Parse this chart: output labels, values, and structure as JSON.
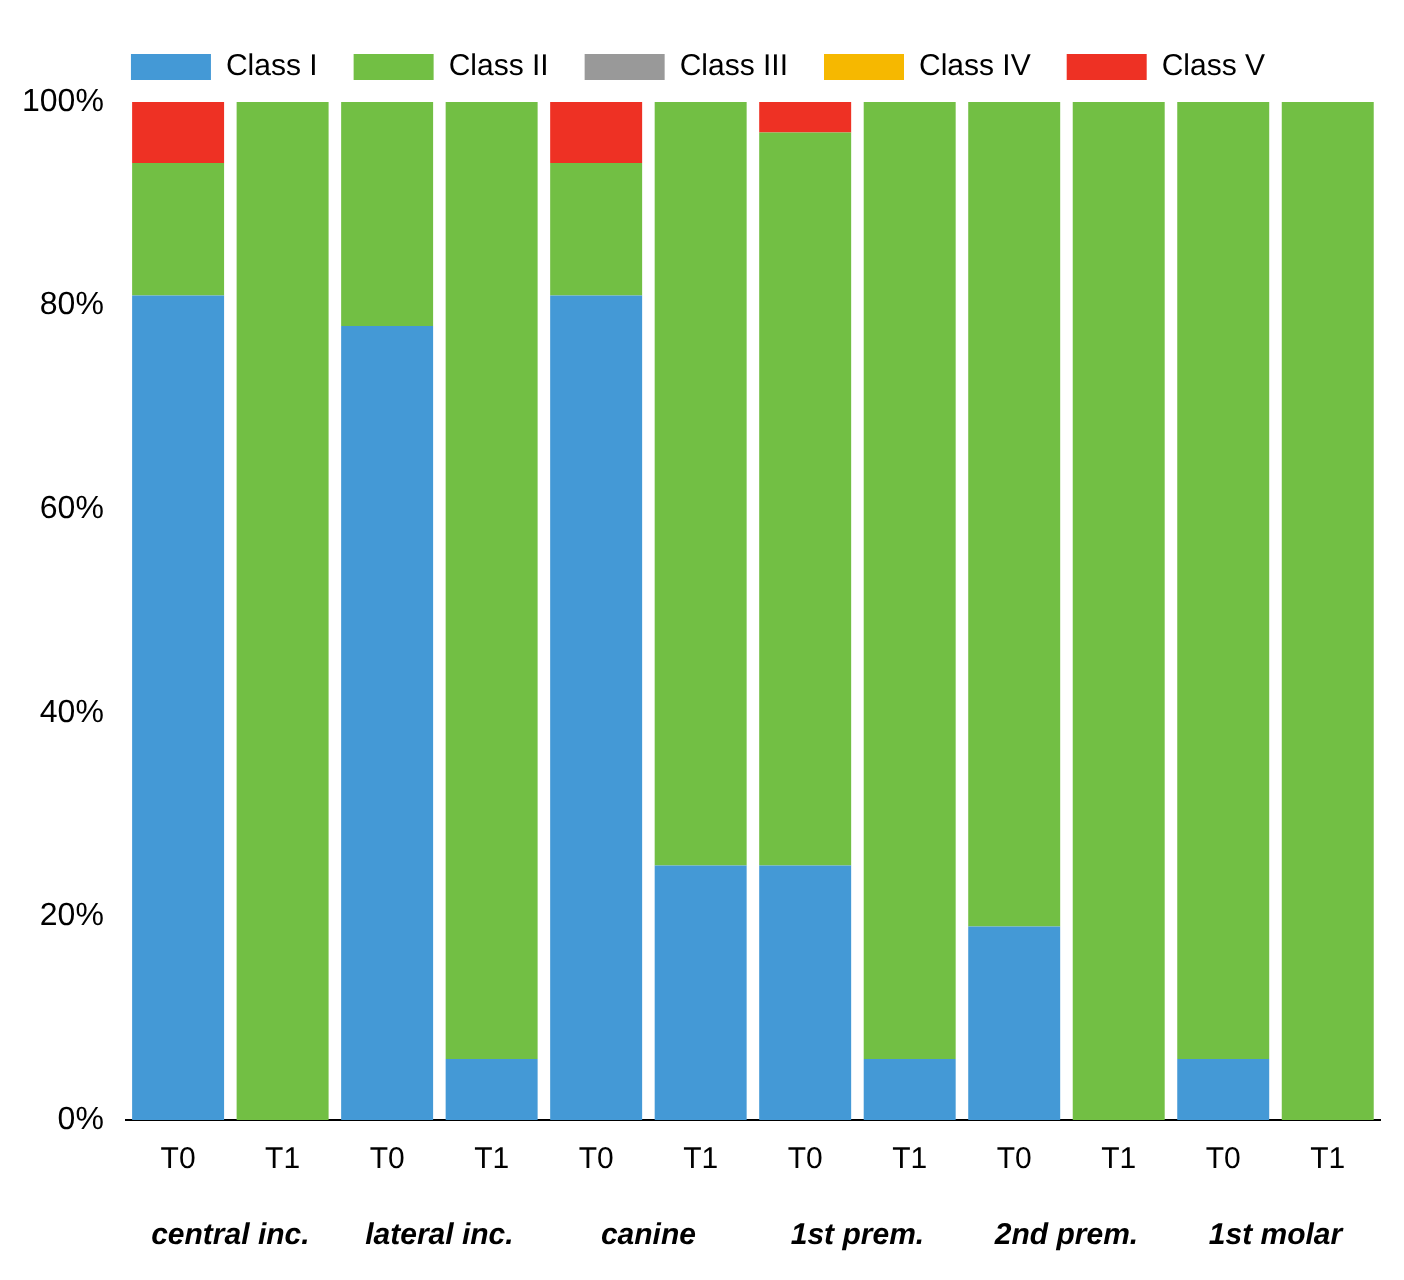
{
  "chart_data": {
    "type": "bar",
    "stacked": true,
    "legend": "top",
    "categories": [
      "T0",
      "T1",
      "T0",
      "T1",
      "T0",
      "T1",
      "T0",
      "T1",
      "T0",
      "T1",
      "T0",
      "T1"
    ],
    "series": [
      {
        "name": "Class I",
        "color": "#4499d6",
        "values": [
          81,
          0,
          78,
          6,
          81,
          25,
          25,
          6,
          19,
          0,
          6,
          0
        ]
      },
      {
        "name": "Class II",
        "color": "#72bf44",
        "values": [
          13,
          100,
          22,
          94,
          13,
          75,
          72,
          94,
          81,
          100,
          94,
          100
        ]
      },
      {
        "name": "Class III",
        "color": "#999999",
        "values": [
          0,
          0,
          0,
          0,
          0,
          0,
          0,
          0,
          0,
          0,
          0,
          0
        ]
      },
      {
        "name": "Class IV",
        "color": "#f6b800",
        "values": [
          0,
          0,
          0,
          0,
          0,
          0,
          0,
          0,
          0,
          0,
          0,
          0
        ]
      },
      {
        "name": "Class V",
        "color": "#ee3124",
        "values": [
          6,
          0,
          0,
          0,
          6,
          0,
          3,
          0,
          0,
          0,
          0,
          0
        ]
      }
    ],
    "ylim": [
      0,
      100
    ],
    "yticks": [
      {
        "value": 0,
        "label": "0%"
      },
      {
        "value": 20,
        "label": "20%"
      },
      {
        "value": 40,
        "label": "40%"
      },
      {
        "value": 60,
        "label": "60%"
      },
      {
        "value": 80,
        "label": "80%"
      },
      {
        "value": 100,
        "label": "100%"
      }
    ],
    "grid": false,
    "annotations": [
      "central inc.",
      "lateral inc.",
      "canine",
      "1st prem.",
      "2nd prem.",
      "1st molar"
    ]
  }
}
